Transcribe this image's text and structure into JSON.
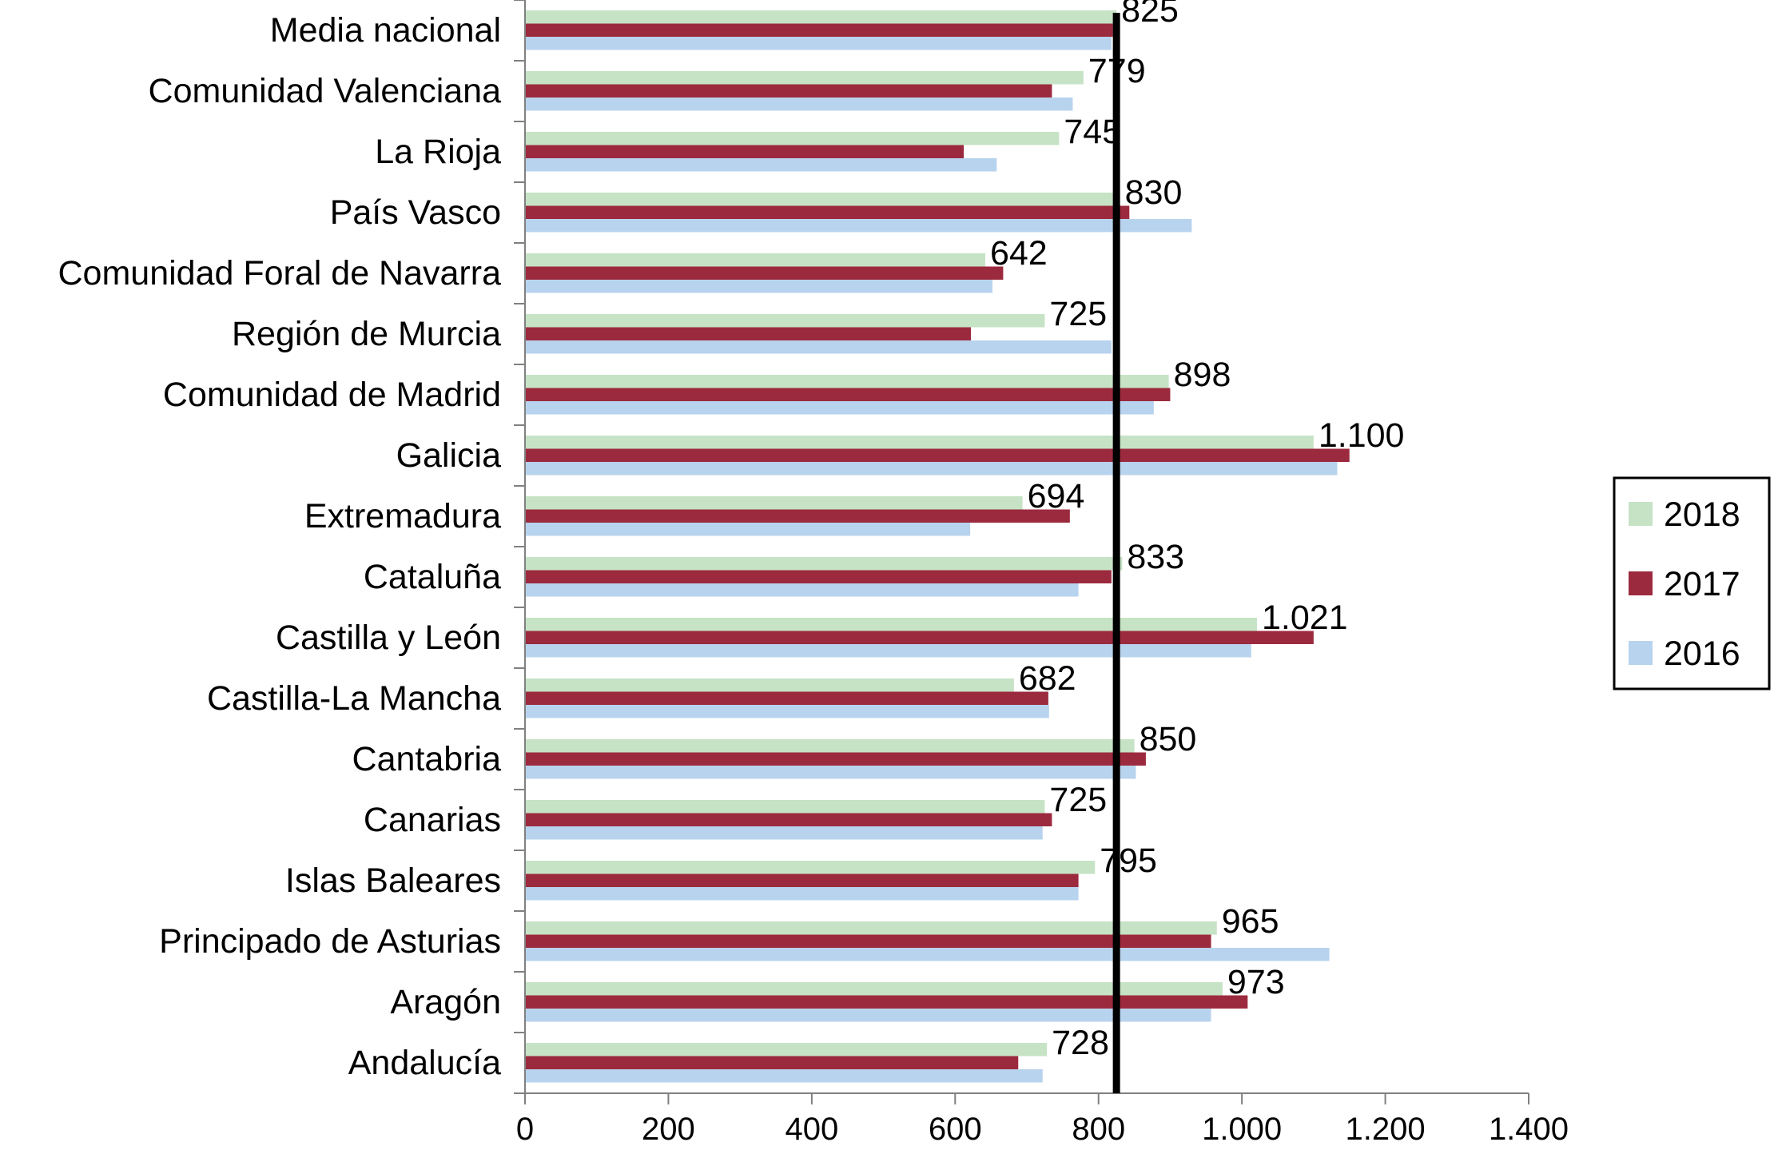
{
  "chart_data": {
    "type": "bar",
    "orientation": "horizontal",
    "title": "",
    "xlabel": "",
    "ylabel": "",
    "xlim": [
      0,
      1400
    ],
    "x_ticks": [
      0,
      200,
      400,
      600,
      800,
      1000,
      1200,
      1400
    ],
    "x_tick_labels": [
      "0",
      "200",
      "400",
      "600",
      "800",
      "1.000",
      "1.200",
      "1.400"
    ],
    "grid": false,
    "legend_position": "right",
    "categories": [
      "Media nacional",
      "Comunidad Valenciana",
      "La Rioja",
      "País Vasco",
      "Comunidad Foral de Navarra",
      "Región de Murcia",
      "Comunidad de Madrid",
      "Galicia",
      "Extremadura",
      "Cataluña",
      "Castilla y León",
      "Castilla-La Mancha",
      "Cantabria",
      "Canarias",
      "Islas Baleares",
      "Principado de Asturias",
      "Aragón",
      "Andalucía"
    ],
    "series": [
      {
        "name": "2018",
        "color": "#c6e3c5",
        "values": [
          825,
          779,
          745,
          830,
          642,
          725,
          898,
          1100,
          694,
          833,
          1021,
          682,
          850,
          725,
          795,
          965,
          973,
          728
        ]
      },
      {
        "name": "2017",
        "color": "#9c2a3e",
        "values": [
          820,
          735,
          612,
          843,
          667,
          622,
          900,
          1150,
          760,
          818,
          1100,
          730,
          866,
          735,
          772,
          957,
          1008,
          688
        ]
      },
      {
        "name": "2016",
        "color": "#b8d3ee",
        "values": [
          818,
          764,
          658,
          930,
          652,
          818,
          877,
          1133,
          621,
          772,
          1013,
          731,
          852,
          722,
          772,
          1122,
          957,
          722
        ]
      }
    ],
    "data_labels": [
      "825",
      "779",
      "745",
      "830",
      "642",
      "725",
      "898",
      "1.100",
      "694",
      "833",
      "1.021",
      "682",
      "850",
      "725",
      "795",
      "965",
      "973",
      "728"
    ],
    "reference_line": {
      "value": 825,
      "color": "#000000"
    }
  }
}
